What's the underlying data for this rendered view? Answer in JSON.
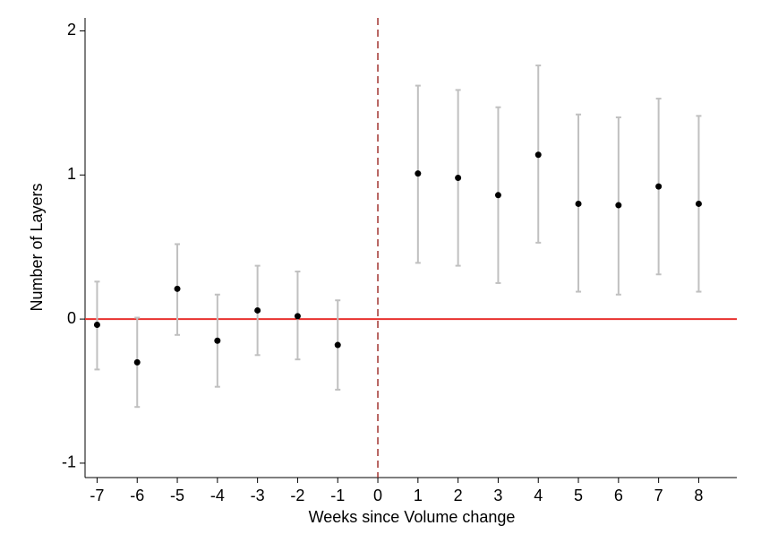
{
  "chart_data": {
    "type": "errorbar",
    "x_label": "Weeks since Volume change",
    "y_label": "Number of Layers",
    "x": [
      -7,
      -6,
      -5,
      -4,
      -3,
      -2,
      -1,
      1,
      2,
      3,
      4,
      5,
      6,
      7,
      8
    ],
    "values": [
      -0.04,
      -0.3,
      0.21,
      -0.15,
      0.06,
      0.02,
      -0.18,
      1.01,
      0.98,
      0.86,
      1.14,
      0.8,
      0.79,
      0.92,
      0.8
    ],
    "ci_low": [
      -0.35,
      -0.61,
      -0.11,
      -0.47,
      -0.25,
      -0.28,
      -0.49,
      0.39,
      0.37,
      0.25,
      0.53,
      0.19,
      0.17,
      0.31,
      0.19
    ],
    "ci_high": [
      0.26,
      0.01,
      0.52,
      0.17,
      0.37,
      0.33,
      0.13,
      1.62,
      1.59,
      1.47,
      1.76,
      1.42,
      1.4,
      1.53,
      1.41
    ],
    "point_color": "#000000",
    "ci_color": "#c0c0c0",
    "hline": 0,
    "hline_color": "#e8322e",
    "vline": 0,
    "vline_color": "#a0322e",
    "xlim": [
      -7.3,
      8.95
    ],
    "ylim": [
      -1.1,
      2.09
    ],
    "xticks": [
      -7,
      -6,
      -5,
      -4,
      -3,
      -2,
      -1,
      0,
      1,
      2,
      3,
      4,
      5,
      6,
      7,
      8
    ],
    "yticks": [
      -1,
      0,
      1,
      2
    ]
  }
}
